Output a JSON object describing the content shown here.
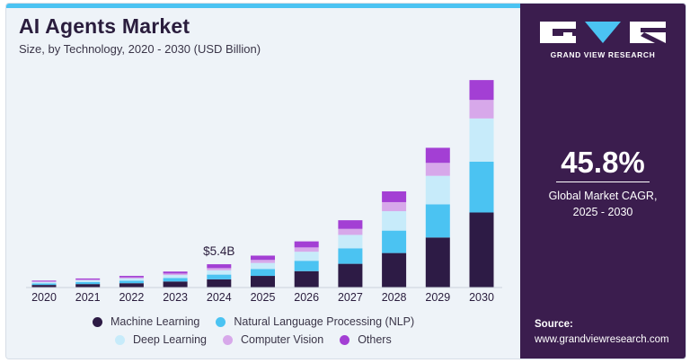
{
  "header": {
    "title": "AI Agents Market",
    "subtitle": "Size, by Technology, 2020 - 2030 (USD Billion)"
  },
  "annotation": {
    "label": "$5.4B",
    "year": "2024"
  },
  "sidebar": {
    "brand": "GRAND VIEW RESEARCH",
    "cagr_value": "45.8%",
    "cagr_label_line1": "Global Market CAGR,",
    "cagr_label_line2": "2025 - 2030",
    "source_title": "Source:",
    "source_url": "www.grandviewresearch.com"
  },
  "colors": {
    "Machine Learning": "#2d1b45",
    "Natural Language Processing (NLP)": "#4bc3f2",
    "Deep Learning": "#c7ebfa",
    "Computer Vision": "#d7a8ea",
    "Others": "#a33fd4",
    "panel": "#3b1d4e",
    "accent": "#4bc3f2"
  },
  "chart_data": {
    "type": "bar",
    "stacked": true,
    "title": "AI Agents Market",
    "subtitle": "Size, by Technology, 2020 - 2030 (USD Billion)",
    "categories": [
      "2020",
      "2021",
      "2022",
      "2023",
      "2024",
      "2025",
      "2026",
      "2027",
      "2028",
      "2029",
      "2030"
    ],
    "series": [
      {
        "name": "Machine Learning",
        "values": [
          0.6,
          0.8,
          1.0,
          1.4,
          1.9,
          2.7,
          3.8,
          5.5,
          8.0,
          11.6,
          17.4
        ]
      },
      {
        "name": "Natural Language Processing (NLP)",
        "values": [
          0.35,
          0.45,
          0.6,
          0.8,
          1.1,
          1.6,
          2.4,
          3.6,
          5.2,
          7.7,
          11.8
        ]
      },
      {
        "name": "Deep Learning",
        "values": [
          0.3,
          0.4,
          0.5,
          0.7,
          1.0,
          1.4,
          2.1,
          3.1,
          4.5,
          6.6,
          10.0
        ]
      },
      {
        "name": "Computer Vision",
        "values": [
          0.15,
          0.2,
          0.25,
          0.35,
          0.5,
          0.7,
          1.0,
          1.4,
          2.1,
          3.0,
          4.3
        ]
      },
      {
        "name": "Others",
        "values": [
          0.2,
          0.25,
          0.35,
          0.45,
          0.9,
          1.0,
          1.4,
          2.0,
          2.5,
          3.5,
          4.6
        ]
      }
    ],
    "legend": [
      [
        "Machine Learning",
        "Natural Language Processing (NLP)"
      ],
      [
        "Deep Learning",
        "Computer Vision",
        "Others"
      ]
    ],
    "ylim": [
      0,
      50
    ],
    "grid": false,
    "legend_position": "bottom"
  }
}
